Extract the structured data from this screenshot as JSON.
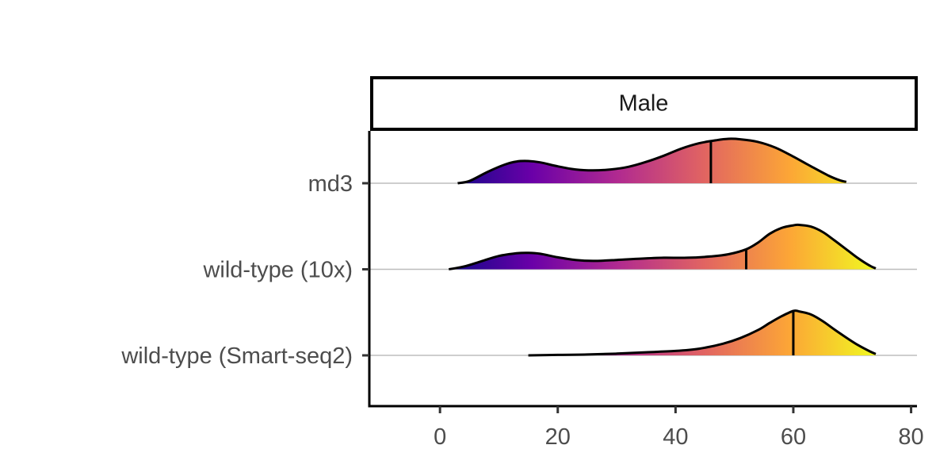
{
  "chart_data": {
    "type": "ridgeline",
    "facet": "Male",
    "xlim": [
      -12,
      81
    ],
    "xticks": [
      0,
      20,
      40,
      60,
      80
    ],
    "xlabel": "",
    "ylabel": "",
    "grid": "horizontal baselines only",
    "legend": "none",
    "fill_gradient": [
      "#0d0887",
      "#6a00a8",
      "#b12a90",
      "#e16462",
      "#fca636",
      "#f0f921"
    ],
    "series": [
      {
        "name": "md3",
        "quantile_line": 46,
        "density": [
          [
            3,
            0.0
          ],
          [
            5,
            0.05
          ],
          [
            8,
            0.25
          ],
          [
            11,
            0.42
          ],
          [
            13,
            0.49
          ],
          [
            15,
            0.5
          ],
          [
            17,
            0.47
          ],
          [
            20,
            0.38
          ],
          [
            23,
            0.31
          ],
          [
            26,
            0.29
          ],
          [
            29,
            0.31
          ],
          [
            32,
            0.37
          ],
          [
            35,
            0.48
          ],
          [
            38,
            0.62
          ],
          [
            41,
            0.78
          ],
          [
            44,
            0.9
          ],
          [
            47,
            0.97
          ],
          [
            49,
            1.0
          ],
          [
            51,
            0.99
          ],
          [
            54,
            0.93
          ],
          [
            57,
            0.8
          ],
          [
            60,
            0.6
          ],
          [
            63,
            0.38
          ],
          [
            66,
            0.17
          ],
          [
            68,
            0.06
          ],
          [
            69,
            0.03
          ]
        ]
      },
      {
        "name": "wild-type (10x)",
        "quantile_line": 52,
        "density": [
          [
            1.5,
            0.0
          ],
          [
            4,
            0.06
          ],
          [
            7,
            0.18
          ],
          [
            10,
            0.3
          ],
          [
            13,
            0.36
          ],
          [
            15,
            0.37
          ],
          [
            17,
            0.35
          ],
          [
            20,
            0.27
          ],
          [
            23,
            0.21
          ],
          [
            26,
            0.19
          ],
          [
            30,
            0.21
          ],
          [
            34,
            0.24
          ],
          [
            38,
            0.26
          ],
          [
            42,
            0.26
          ],
          [
            46,
            0.29
          ],
          [
            49,
            0.34
          ],
          [
            52,
            0.45
          ],
          [
            54,
            0.6
          ],
          [
            56,
            0.8
          ],
          [
            58,
            0.93
          ],
          [
            60,
            0.99
          ],
          [
            61,
            1.0
          ],
          [
            63,
            0.96
          ],
          [
            65,
            0.84
          ],
          [
            67,
            0.65
          ],
          [
            69,
            0.45
          ],
          [
            71,
            0.25
          ],
          [
            73,
            0.08
          ],
          [
            74,
            0.02
          ]
        ]
      },
      {
        "name": "wild-type (Smart-seq2)",
        "quantile_line": 60,
        "density": [
          [
            15,
            0.0
          ],
          [
            20,
            0.01
          ],
          [
            25,
            0.02
          ],
          [
            30,
            0.04
          ],
          [
            35,
            0.07
          ],
          [
            40,
            0.1
          ],
          [
            44,
            0.15
          ],
          [
            48,
            0.26
          ],
          [
            51,
            0.39
          ],
          [
            54,
            0.57
          ],
          [
            56,
            0.73
          ],
          [
            58,
            0.88
          ],
          [
            60,
            1.0
          ],
          [
            61,
            0.99
          ],
          [
            63,
            0.92
          ],
          [
            65,
            0.77
          ],
          [
            67,
            0.58
          ],
          [
            69,
            0.4
          ],
          [
            71,
            0.23
          ],
          [
            73,
            0.09
          ],
          [
            74,
            0.03
          ]
        ]
      }
    ]
  }
}
